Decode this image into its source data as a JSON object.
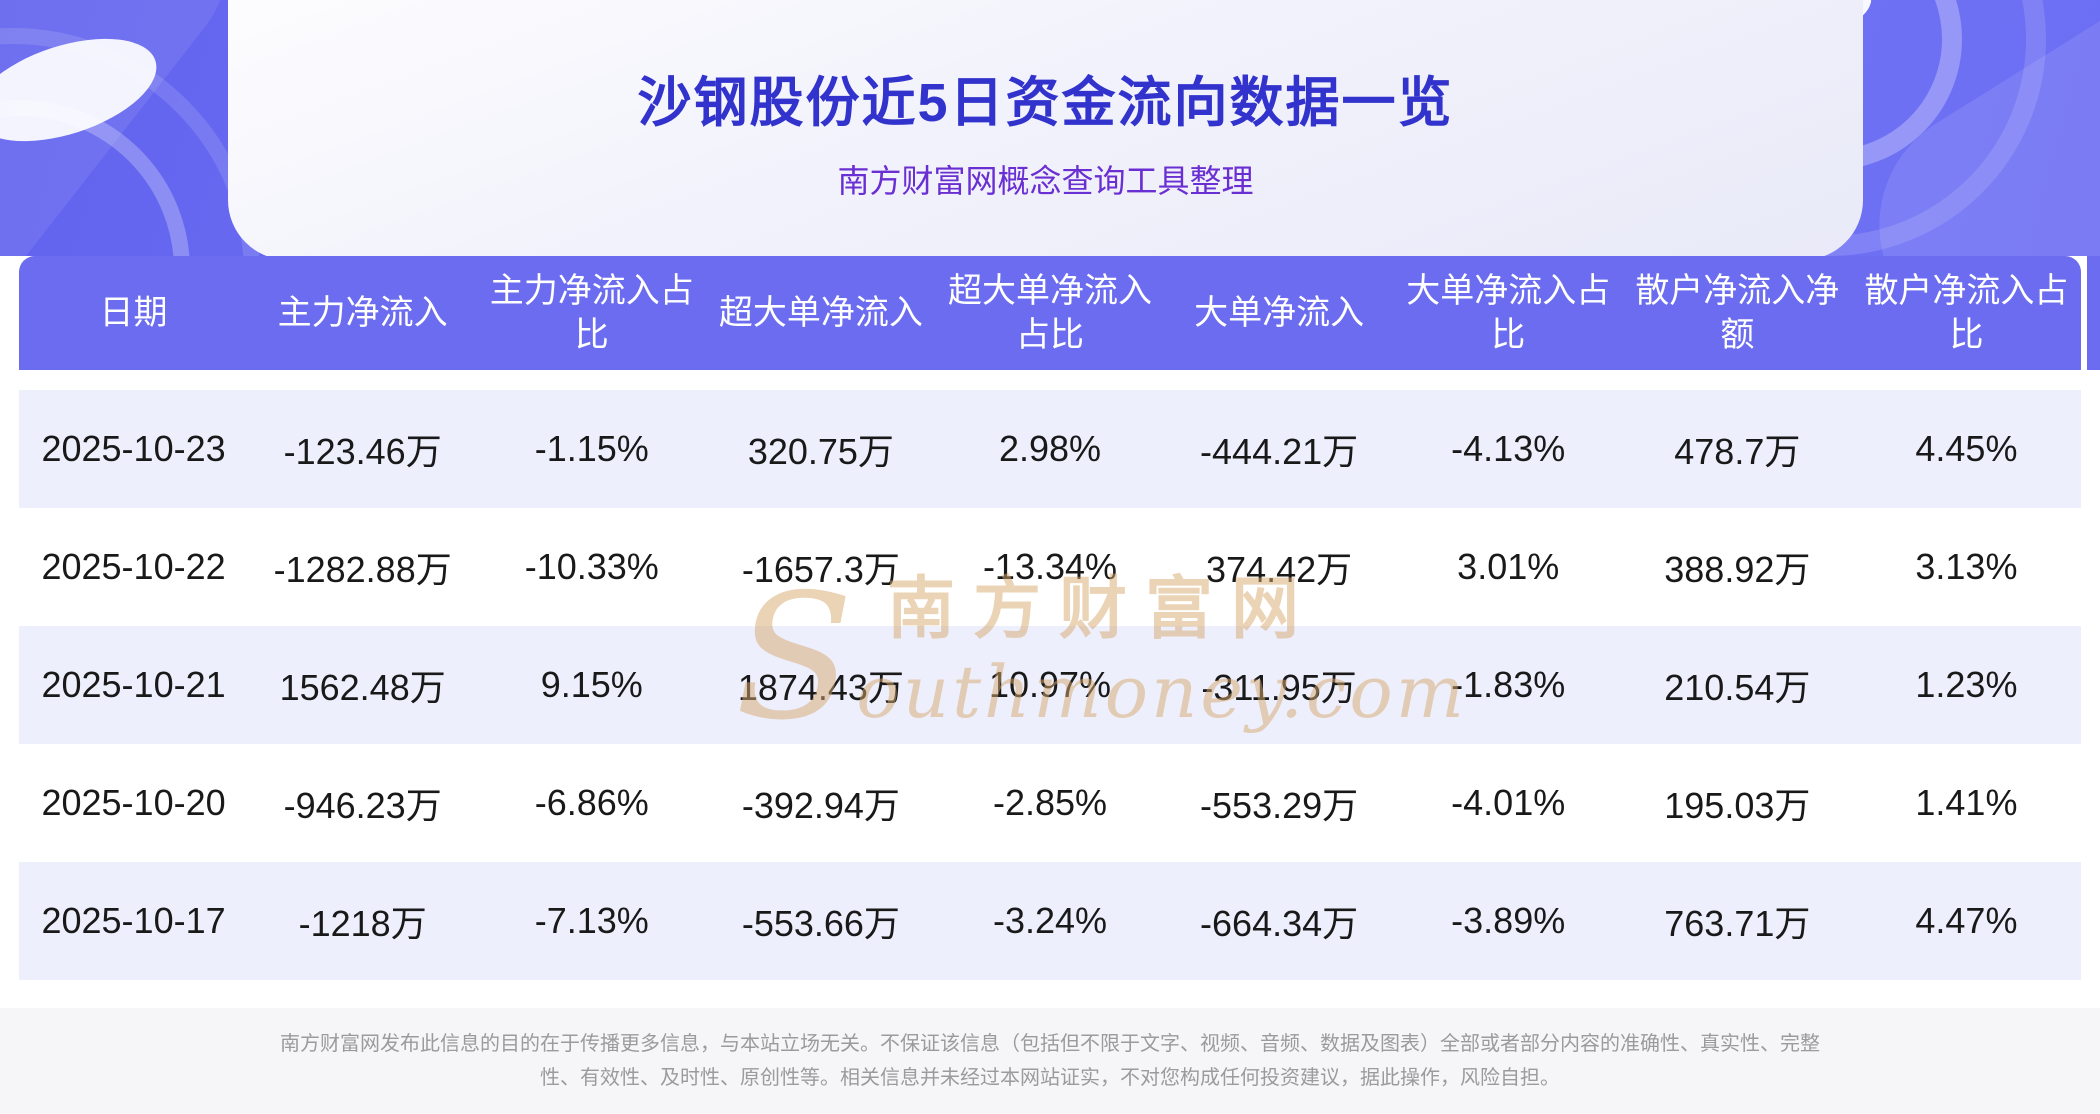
{
  "header": {
    "title": "沙钢股份近5日资金流向数据一览",
    "subtitle": "南方财富网概念查询工具整理"
  },
  "chart_data": {
    "type": "table",
    "title": "沙钢股份近5日资金流向数据一览",
    "columns": [
      "日期",
      "主力净流入",
      "主力净流入占比",
      "超大单净流入",
      "超大单净流入占比",
      "大单净流入",
      "大单净流入占比",
      "散户净流入净额",
      "散户净流入占比"
    ],
    "rows": [
      [
        "2025-10-23",
        "-123.46万",
        "-1.15%",
        "320.75万",
        "2.98%",
        "-444.21万",
        "-4.13%",
        "478.7万",
        "4.45%"
      ],
      [
        "2025-10-22",
        "-1282.88万",
        "-10.33%",
        "-1657.3万",
        "-13.34%",
        "374.42万",
        "3.01%",
        "388.92万",
        "3.13%"
      ],
      [
        "2025-10-21",
        "1562.48万",
        "9.15%",
        "1874.43万",
        "10.97%",
        "-311.95万",
        "-1.83%",
        "210.54万",
        "1.23%"
      ],
      [
        "2025-10-20",
        "-946.23万",
        "-6.86%",
        "-392.94万",
        "-2.85%",
        "-553.29万",
        "-4.01%",
        "195.03万",
        "1.41%"
      ],
      [
        "2025-10-17",
        "-1218万",
        "-7.13%",
        "-553.66万",
        "-3.24%",
        "-664.34万",
        "-3.89%",
        "763.71万",
        "4.47%"
      ]
    ]
  },
  "watermark": {
    "cn": "南方财富网",
    "en": "Southmoney.com"
  },
  "footer": {
    "disclaimer": "南方财富网发布此信息的目的在于传播更多信息，与本站立场无关。不保证该信息（包括但不限于文字、视频、音频、数据及图表）全部或者部分内容的准确性、真实性、完整性、有效性、及时性、原创性等。相关信息并未经过本网站证实，不对您构成任何投资建议，据此操作，风险自担。"
  },
  "colors": {
    "banner_purple": "#6b6cf2",
    "title_text": "#3232cc",
    "subtitle_text": "#6a2fd2",
    "table_header_bg": "#6b6cef",
    "row_alt_bg": "#edeffc",
    "watermark": "#d9a96f",
    "footer_text": "#9b9b9b"
  }
}
